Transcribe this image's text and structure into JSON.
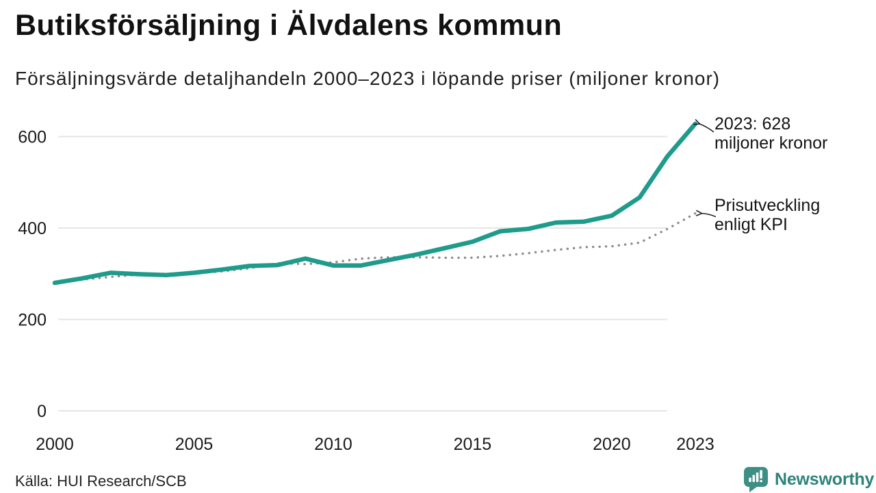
{
  "header": {
    "title": "Butiksförsäljning i Älvdalens kommun",
    "subtitle": "Försäljningsvärde detaljhandeln 2000–2023 i löpande priser (miljoner kronor)"
  },
  "chart_data": {
    "type": "line",
    "title": "Butiksförsäljning i Älvdalens kommun",
    "subtitle": "Försäljningsvärde detaljhandeln 2000–2023 i löpande priser (miljoner kronor)",
    "xlabel": "",
    "ylabel": "miljoner kronor",
    "x": [
      2000,
      2001,
      2002,
      2003,
      2004,
      2005,
      2006,
      2007,
      2008,
      2009,
      2010,
      2011,
      2012,
      2013,
      2014,
      2015,
      2016,
      2017,
      2018,
      2019,
      2020,
      2021,
      2022,
      2023
    ],
    "series": [
      {
        "name": "Försäljningsvärde detaljhandeln, löpande priser",
        "style": "solid",
        "color": "#1f9b8b",
        "values": [
          280,
          290,
          302,
          299,
          297,
          302,
          309,
          317,
          319,
          333,
          318,
          318,
          330,
          342,
          356,
          370,
          393,
          398,
          412,
          414,
          427,
          467,
          557,
          628
        ]
      },
      {
        "name": "Prisutveckling enligt KPI",
        "style": "dotted",
        "color": "#8b8b8b",
        "values": [
          280,
          287,
          293,
          298,
          300,
          301,
          305,
          312,
          323,
          321,
          325,
          333,
          336,
          336,
          335,
          335,
          339,
          345,
          352,
          358,
          360,
          368,
          398,
          432
        ]
      }
    ],
    "xticks": [
      2000,
      2005,
      2010,
      2015,
      2020,
      2023
    ],
    "yticks": [
      0,
      200,
      400,
      600
    ],
    "xlim": [
      2000,
      2023
    ],
    "ylim": [
      0,
      660
    ],
    "grid": "horizontal",
    "legend_position": "none",
    "annotations": [
      {
        "text": "2023: 628\nmiljoner kronor",
        "anchor_year": 2023,
        "anchor_value": 628
      },
      {
        "text": "Prisutveckling\nenligt KPI",
        "anchor_year": 2023,
        "anchor_value": 432
      }
    ]
  },
  "footer": {
    "source": "Källa: HUI Research/SCB",
    "logo_text": "Newsworthy"
  },
  "colors": {
    "sales_line": "#1f9b8b",
    "kpi_dots": "#8b8b8b",
    "gridline": "#e5e5e5",
    "tick_text": "#1a1a1a",
    "logo_teal": "#3d8e84",
    "logo_text_teal": "#2e837a"
  }
}
